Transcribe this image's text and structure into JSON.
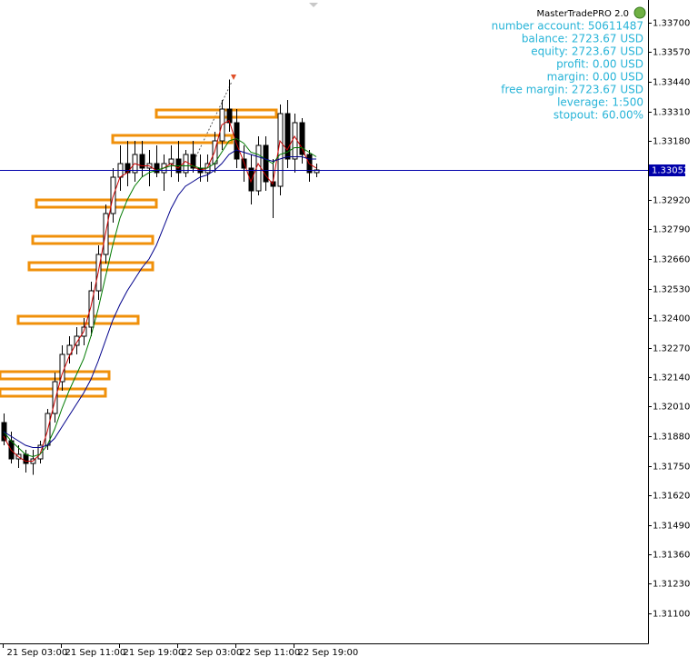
{
  "chart_data": {
    "type": "candlestick",
    "ylim": [
      1.30968,
      1.338
    ],
    "yticks": [
      {
        "value": 1.337,
        "label": "1.33700"
      },
      {
        "value": 1.3357,
        "label": "1.33570"
      },
      {
        "value": 1.3344,
        "label": "1.33440"
      },
      {
        "value": 1.3331,
        "label": "1.33310"
      },
      {
        "value": 1.3318,
        "label": "1.33180"
      },
      {
        "value": 1.3292,
        "label": "1.32920"
      },
      {
        "value": 1.3279,
        "label": "1.32790"
      },
      {
        "value": 1.3266,
        "label": "1.32660"
      },
      {
        "value": 1.3253,
        "label": "1.32530"
      },
      {
        "value": 1.324,
        "label": "1.32400"
      },
      {
        "value": 1.3227,
        "label": "1.32270"
      },
      {
        "value": 1.3214,
        "label": "1.32140"
      },
      {
        "value": 1.3201,
        "label": "1.32010"
      },
      {
        "value": 1.3188,
        "label": "1.31880"
      },
      {
        "value": 1.3175,
        "label": "1.31750"
      },
      {
        "value": 1.3162,
        "label": "1.31620"
      },
      {
        "value": 1.3149,
        "label": "1.31490"
      },
      {
        "value": 1.3136,
        "label": "1.31360"
      },
      {
        "value": 1.3123,
        "label": "1.31230"
      },
      {
        "value": 1.311,
        "label": "1.31100"
      }
    ],
    "xlim": [
      -0.5,
      88.625
    ],
    "xticks": [
      {
        "value": 0,
        "label": "21 Sep 03:00"
      },
      {
        "value": 8,
        "label": "21 Sep 11:00"
      },
      {
        "value": 16,
        "label": "21 Sep 19:00"
      },
      {
        "value": 24,
        "label": "22 Sep 03:00"
      },
      {
        "value": 32,
        "label": "22 Sep 11:00"
      },
      {
        "value": 40,
        "label": "22 Sep 19:00"
      }
    ],
    "open": [
      1.3194,
      1.3186,
      1.3178,
      1.318,
      1.3176,
      1.3178,
      1.3184,
      1.3198,
      1.3212,
      1.3224,
      1.3228,
      1.3232,
      1.3236,
      1.3252,
      1.3268,
      1.3286,
      1.3302,
      1.3308,
      1.3304,
      1.3312,
      1.3306,
      1.3308,
      1.3304,
      1.3308,
      1.331,
      1.3304,
      1.3312,
      1.3306,
      1.3304,
      1.3308,
      1.3318,
      1.3332,
      1.3326,
      1.331,
      1.3306,
      1.3296,
      1.3316,
      1.33,
      1.3298,
      1.333,
      1.331,
      1.3326,
      1.3312,
      1.3304
    ],
    "high": [
      1.3198,
      1.319,
      1.3184,
      1.3182,
      1.3182,
      1.3186,
      1.32,
      1.3216,
      1.3228,
      1.3232,
      1.3236,
      1.324,
      1.3256,
      1.3272,
      1.329,
      1.3306,
      1.3316,
      1.3318,
      1.3318,
      1.3318,
      1.3314,
      1.3316,
      1.3312,
      1.3316,
      1.3318,
      1.3314,
      1.3318,
      1.3312,
      1.3312,
      1.3322,
      1.3336,
      1.3345,
      1.3332,
      1.3316,
      1.3312,
      1.332,
      1.332,
      1.331,
      1.3334,
      1.3336,
      1.333,
      1.3328,
      1.3314,
      1.3308
    ],
    "low": [
      1.3184,
      1.3176,
      1.3174,
      1.3172,
      1.3171,
      1.3176,
      1.3182,
      1.3194,
      1.3208,
      1.322,
      1.3224,
      1.3228,
      1.3232,
      1.3248,
      1.3264,
      1.3282,
      1.3296,
      1.3298,
      1.33,
      1.3302,
      1.3298,
      1.3302,
      1.3296,
      1.3302,
      1.33,
      1.3302,
      1.3304,
      1.33,
      1.33,
      1.3304,
      1.3314,
      1.3322,
      1.3306,
      1.33,
      1.329,
      1.3294,
      1.3296,
      1.3284,
      1.3294,
      1.3306,
      1.3304,
      1.3308,
      1.33,
      1.3302
    ],
    "close": [
      1.3186,
      1.3178,
      1.318,
      1.3176,
      1.3178,
      1.3184,
      1.3198,
      1.3212,
      1.3224,
      1.3228,
      1.3232,
      1.3236,
      1.3252,
      1.3268,
      1.3286,
      1.3302,
      1.3308,
      1.3304,
      1.3312,
      1.3306,
      1.3308,
      1.3304,
      1.3308,
      1.331,
      1.3304,
      1.3312,
      1.3306,
      1.3304,
      1.3308,
      1.3318,
      1.3332,
      1.3326,
      1.331,
      1.3306,
      1.3296,
      1.3316,
      1.33,
      1.3298,
      1.333,
      1.331,
      1.3326,
      1.3312,
      1.3304,
      1.33052
    ],
    "ma_lines": [
      {
        "color": "#cc0000",
        "values": [
          1.3188,
          1.3182,
          1.3179,
          1.3177,
          1.3177,
          1.318,
          1.319,
          1.3203,
          1.3215,
          1.3223,
          1.3229,
          1.3234,
          1.3245,
          1.326,
          1.3277,
          1.3293,
          1.3302,
          1.3304,
          1.3308,
          1.3307,
          1.3307,
          1.3305,
          1.3306,
          1.3308,
          1.3306,
          1.3309,
          1.3307,
          1.3305,
          1.3306,
          1.3313,
          1.3325,
          1.3327,
          1.3317,
          1.3309,
          1.33,
          1.3308,
          1.3303,
          1.3299,
          1.3318,
          1.3314,
          1.332,
          1.3315,
          1.3308,
          1.3306
        ]
      },
      {
        "color": "#007a00",
        "values": [
          1.319,
          1.3186,
          1.3183,
          1.318,
          1.3179,
          1.318,
          1.3184,
          1.3191,
          1.32,
          1.3208,
          1.3215,
          1.3222,
          1.3232,
          1.3244,
          1.3258,
          1.3272,
          1.3284,
          1.3292,
          1.3298,
          1.3302,
          1.3304,
          1.3305,
          1.3306,
          1.3307,
          1.3307,
          1.3307,
          1.3307,
          1.3306,
          1.3306,
          1.3308,
          1.3313,
          1.3318,
          1.3319,
          1.3317,
          1.3313,
          1.3312,
          1.331,
          1.3308,
          1.3312,
          1.3313,
          1.3315,
          1.3315,
          1.3313,
          1.3311
        ]
      },
      {
        "color": "#00008b",
        "values": [
          1.319,
          1.3188,
          1.3186,
          1.3184,
          1.3183,
          1.3183,
          1.3184,
          1.3187,
          1.3192,
          1.3197,
          1.3202,
          1.3207,
          1.3213,
          1.3221,
          1.323,
          1.3239,
          1.3246,
          1.3252,
          1.3257,
          1.3262,
          1.3266,
          1.3272,
          1.328,
          1.3288,
          1.3294,
          1.3298,
          1.33,
          1.3302,
          1.3303,
          1.3305,
          1.3308,
          1.3312,
          1.3314,
          1.3313,
          1.3312,
          1.3311,
          1.331,
          1.3309,
          1.331,
          1.3311,
          1.3311,
          1.3311,
          1.331,
          1.331
        ]
      }
    ],
    "zone_color": "#f0900a",
    "zones": [
      {
        "level": 1.333,
        "from": 21,
        "to": 37.5
      },
      {
        "level": 1.33188,
        "from": 15,
        "to": 31.4
      },
      {
        "level": 1.32904,
        "from": 4.5,
        "to": 21
      },
      {
        "level": 1.32744,
        "from": 4,
        "to": 20.5
      },
      {
        "level": 1.32628,
        "from": 3.5,
        "to": 20.5
      },
      {
        "level": 1.32392,
        "from": 2,
        "to": 18.5
      },
      {
        "level": 1.32148,
        "from": -0.5,
        "to": 14.5
      },
      {
        "level": 1.32072,
        "from": -0.5,
        "to": 14
      }
    ],
    "current_price": {
      "value": 1.33052,
      "label": "1.33052",
      "color": "#0000aa"
    },
    "info_title": "MasterTradePRO 2.0",
    "info_color": "#27b4d8",
    "info_lines": [
      "number account: 50611487",
      "balance: 2723.67 USD",
      "equity: 2723.67 USD",
      "profit: 0.00 USD",
      "margin: 0.00 USD",
      "free margin: 2723.67 USD",
      "leverage: 1:500",
      "stopout: 60.00%"
    ]
  }
}
